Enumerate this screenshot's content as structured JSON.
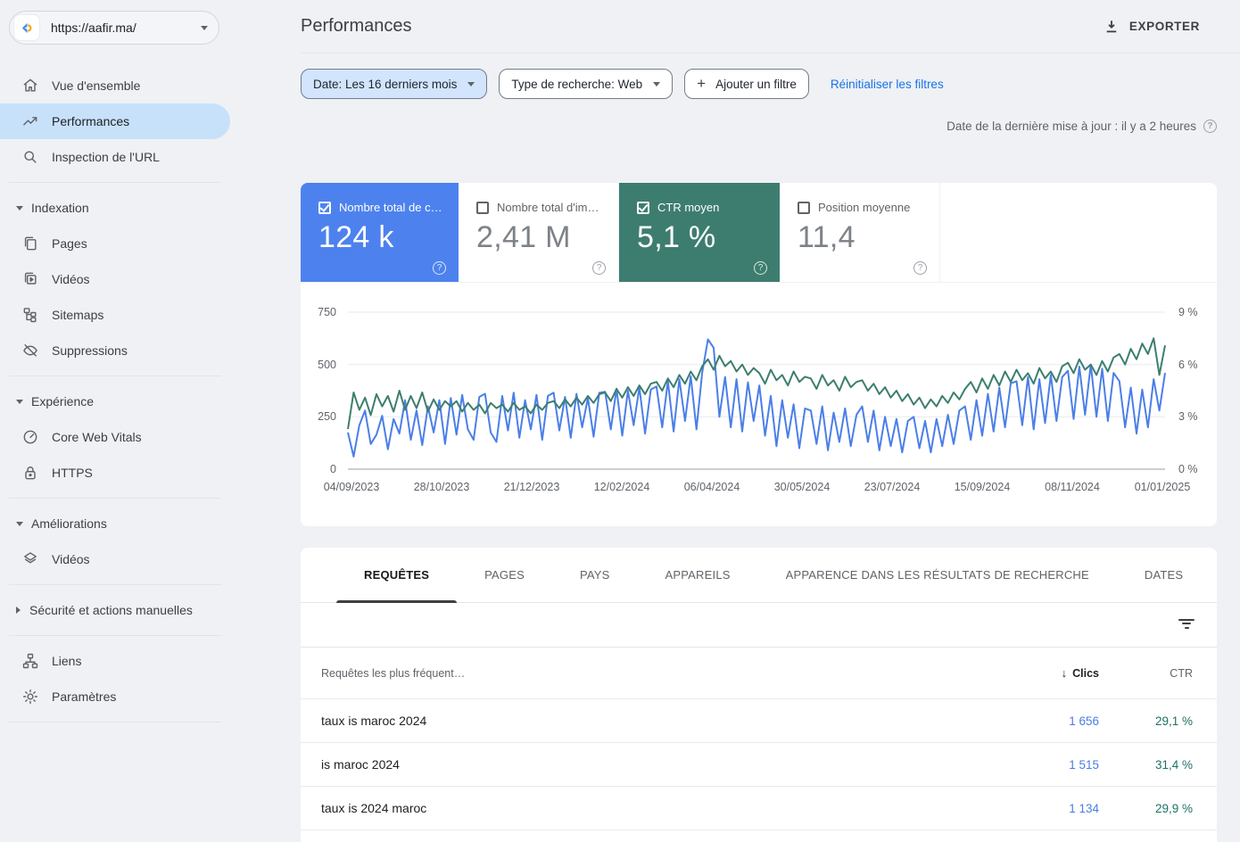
{
  "property": {
    "url": "https://aafir.ma/"
  },
  "sidebar": {
    "overview": "Vue d'ensemble",
    "performance": "Performances",
    "inspection": "Inspection de l'URL",
    "indexation": "Indexation",
    "pages": "Pages",
    "videos": "Vidéos",
    "sitemaps": "Sitemaps",
    "suppressions": "Suppressions",
    "experience": "Expérience",
    "cwv": "Core Web Vitals",
    "https": "HTTPS",
    "ameliorations": "Améliorations",
    "amel_videos": "Vidéos",
    "security": "Sécurité et actions manuelles",
    "links": "Liens",
    "settings": "Paramètres"
  },
  "header": {
    "title": "Performances",
    "export_label": "EXPORTER"
  },
  "filters": {
    "date": "Date: Les 16 derniers mois",
    "search_type": "Type de recherche: Web",
    "add_filter": "Ajouter un filtre",
    "reset": "Réinitialiser les filtres",
    "last_update": "Date de la dernière mise à jour : il y a 2 heures"
  },
  "metrics": [
    {
      "label": "Nombre total de c…",
      "value": "124 k",
      "selected": true,
      "color": "#4d82ee"
    },
    {
      "label": "Nombre total d'im…",
      "value": "2,41 M",
      "selected": false,
      "color": "#ffffff"
    },
    {
      "label": "CTR moyen",
      "value": "5,1 %",
      "selected": true,
      "color": "#3d7d6f"
    },
    {
      "label": "Position moyenne",
      "value": "11,4",
      "selected": false,
      "color": "#ffffff"
    }
  ],
  "chart_data": {
    "type": "line",
    "x_labels": [
      "04/09/2023",
      "28/10/2023",
      "21/12/2023",
      "12/02/2024",
      "06/04/2024",
      "30/05/2024",
      "23/07/2024",
      "15/09/2024",
      "08/11/2024",
      "01/01/2025"
    ],
    "left_ticks": [
      "750",
      "500",
      "250",
      "0"
    ],
    "right_ticks": [
      "9 %",
      "6 %",
      "3 %",
      "0 %"
    ],
    "left_range": [
      0,
      750
    ],
    "right_range": [
      0,
      9
    ],
    "grid": true,
    "series": [
      {
        "name": "Nombre total de clics",
        "axis": "left",
        "color": "#4b7fe8",
        "values": [
          175,
          60,
          210,
          280,
          120,
          165,
          255,
          95,
          240,
          170,
          330,
          140,
          280,
          115,
          300,
          175,
          330,
          120,
          340,
          165,
          355,
          190,
          140,
          345,
          360,
          175,
          130,
          350,
          185,
          365,
          150,
          330,
          190,
          355,
          140,
          350,
          365,
          185,
          345,
          150,
          360,
          200,
          340,
          155,
          365,
          370,
          190,
          385,
          160,
          375,
          210,
          390,
          170,
          380,
          395,
          200,
          420,
          180,
          430,
          230,
          445,
          190,
          460,
          620,
          580,
          250,
          440,
          200,
          430,
          180,
          415,
          230,
          400,
          160,
          350,
          110,
          330,
          150,
          310,
          100,
          290,
          280,
          120,
          300,
          90,
          270,
          130,
          290,
          110,
          260,
          300,
          130,
          280,
          90,
          250,
          110,
          240,
          80,
          230,
          250,
          100,
          230,
          80,
          240,
          110,
          260,
          120,
          280,
          300,
          140,
          330,
          160,
          360,
          180,
          390,
          200,
          410,
          420,
          210,
          440,
          190,
          430,
          220,
          450,
          230,
          440,
          470,
          240,
          490,
          260,
          500,
          250,
          480,
          230,
          460,
          420,
          200,
          390,
          170,
          380,
          200,
          430,
          280,
          460
        ]
      },
      {
        "name": "CTR moyen",
        "axis": "right",
        "color": "#3c7e6e",
        "values": [
          2.3,
          4.4,
          3.4,
          4.1,
          3.1,
          4.3,
          3.6,
          4.2,
          3.3,
          4.5,
          3.4,
          4.2,
          3.5,
          4.4,
          3.3,
          4.0,
          3.4,
          3.9,
          3.6,
          3.9,
          3.3,
          3.8,
          3.4,
          3.7,
          3.2,
          3.8,
          3.5,
          3.7,
          3.3,
          3.8,
          3.4,
          3.6,
          3.2,
          3.7,
          3.4,
          3.8,
          3.9,
          3.5,
          4.0,
          3.6,
          4.1,
          3.7,
          4.2,
          3.8,
          4.3,
          4.4,
          3.9,
          4.6,
          4.1,
          4.7,
          4.2,
          4.8,
          4.3,
          4.9,
          5.0,
          4.5,
          5.2,
          4.7,
          5.4,
          4.9,
          5.6,
          5.1,
          5.9,
          6.3,
          5.7,
          6.5,
          5.9,
          6.2,
          5.6,
          6.0,
          5.4,
          5.8,
          5.5,
          4.9,
          5.7,
          5.1,
          5.4,
          4.8,
          5.6,
          5.0,
          5.3,
          5.2,
          4.6,
          5.4,
          4.8,
          5.1,
          4.5,
          5.3,
          4.7,
          5.0,
          5.1,
          4.5,
          4.9,
          4.3,
          4.7,
          4.1,
          4.5,
          3.9,
          4.3,
          3.7,
          4.1,
          3.5,
          4.0,
          3.6,
          4.2,
          3.8,
          4.4,
          4.0,
          4.6,
          5.0,
          4.4,
          5.2,
          4.6,
          5.4,
          4.8,
          5.6,
          5.0,
          5.7,
          5.1,
          5.5,
          4.9,
          5.8,
          5.2,
          5.6,
          5.0,
          5.9,
          6.1,
          5.5,
          6.3,
          5.7,
          6.0,
          5.4,
          6.2,
          5.6,
          6.4,
          6.6,
          6.0,
          6.9,
          6.3,
          7.2,
          6.6,
          7.5,
          5.4,
          7.1
        ]
      }
    ]
  },
  "tabs": [
    "REQUÊTES",
    "PAGES",
    "PAYS",
    "APPAREILS",
    "APPARENCE DANS LES RÉSULTATS DE RECHERCHE",
    "DATES"
  ],
  "table": {
    "header": {
      "query": "Requêtes les plus fréquent…",
      "clicks": "Clics",
      "ctr": "CTR"
    },
    "rows": [
      {
        "query": "taux is maroc 2024",
        "clicks": "1 656",
        "ctr": "29,1 %"
      },
      {
        "query": "is maroc 2024",
        "clicks": "1 515",
        "ctr": "31,4 %"
      },
      {
        "query": "taux is 2024 maroc",
        "clicks": "1 134",
        "ctr": "29,9 %"
      }
    ]
  }
}
